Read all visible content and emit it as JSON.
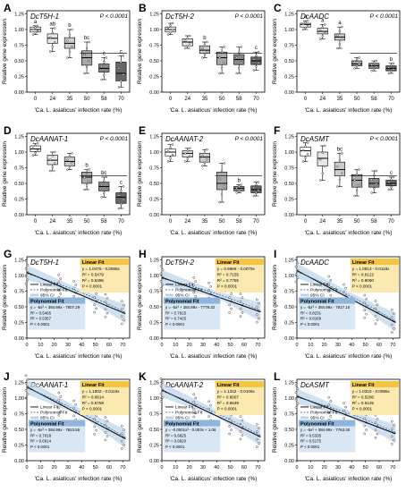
{
  "figure": {
    "shared_x_label": "'Ca. L. asiaticus' infection rate (%)",
    "shared_y_label": "Relative gene expression",
    "box_panels": [
      {
        "letter": "A",
        "gene": "DcT5H-1",
        "pval": "P < 0.0001",
        "ylim": [
          0,
          1.3
        ],
        "yticks": [
          "0.00",
          "0.25",
          "0.50",
          "0.75",
          "1.00",
          "1.25"
        ],
        "categories": [
          "0",
          "24",
          "35",
          "50",
          "58",
          "70"
        ],
        "medians": [
          1.0,
          0.86,
          0.78,
          0.55,
          0.38,
          0.3
        ],
        "q1": [
          0.96,
          0.78,
          0.7,
          0.43,
          0.32,
          0.18
        ],
        "q3": [
          1.04,
          0.93,
          0.87,
          0.66,
          0.45,
          0.48
        ],
        "whisker_low": [
          0.92,
          0.65,
          0.55,
          0.3,
          0.2,
          0.08
        ],
        "whisker_high": [
          1.06,
          1.02,
          1.0,
          0.8,
          0.55,
          0.58
        ],
        "fills": [
          "#ffffff",
          "#e6e6e6",
          "#cccccc",
          "#aaaaaa",
          "#888888",
          "#666666"
        ],
        "letters": [
          "a",
          "ab",
          "b",
          "bc",
          "c",
          "c"
        ],
        "sig_lines": [
          {
            "from": 0,
            "to": 0,
            "y": 1.06,
            "label": "a"
          }
        ]
      },
      {
        "letter": "B",
        "gene": "DcT5H-2",
        "pval": "P < 0.0001",
        "ylim": [
          0,
          1.3
        ],
        "yticks": [
          "0.00",
          "0.25",
          "0.50",
          "0.75",
          "1.00",
          "1.25"
        ],
        "categories": [
          "0",
          "24",
          "35",
          "50",
          "58",
          "70"
        ],
        "medians": [
          1.0,
          0.8,
          0.67,
          0.55,
          0.52,
          0.5
        ],
        "q1": [
          0.96,
          0.74,
          0.62,
          0.44,
          0.44,
          0.44
        ],
        "q3": [
          1.04,
          0.85,
          0.74,
          0.64,
          0.6,
          0.56
        ],
        "whisker_low": [
          0.92,
          0.7,
          0.55,
          0.3,
          0.3,
          0.35
        ],
        "whisker_high": [
          1.1,
          0.9,
          0.8,
          0.72,
          0.72,
          0.64
        ],
        "fills": [
          "#ffffff",
          "#e6e6e6",
          "#cccccc",
          "#aaaaaa",
          "#888888",
          "#666666"
        ],
        "letters": [
          "",
          "",
          "b",
          "",
          "",
          "c"
        ],
        "sig_lines": []
      },
      {
        "letter": "C",
        "gene": "DcAADC",
        "pval": "P < 0.0001",
        "ylim": [
          0,
          1.3
        ],
        "yticks": [
          "0.00",
          "0.25",
          "0.50",
          "0.75",
          "1.00",
          "1.25"
        ],
        "categories": [
          "0",
          "24",
          "35",
          "50",
          "58",
          "70"
        ],
        "medians": [
          1.08,
          0.97,
          0.88,
          0.45,
          0.42,
          0.38
        ],
        "q1": [
          1.04,
          0.93,
          0.83,
          0.42,
          0.38,
          0.34
        ],
        "q3": [
          1.1,
          1.02,
          0.93,
          0.5,
          0.46,
          0.42
        ],
        "whisker_low": [
          1.0,
          0.85,
          0.7,
          0.38,
          0.34,
          0.3
        ],
        "whisker_high": [
          1.14,
          1.08,
          1.04,
          0.55,
          0.5,
          0.46
        ],
        "fills": [
          "#ffffff",
          "#e6e6e6",
          "#cccccc",
          "#aaaaaa",
          "#888888",
          "#666666"
        ],
        "letters": [
          "a",
          "a",
          "a",
          "",
          "",
          "b"
        ],
        "sig_lines": []
      },
      {
        "letter": "D",
        "gene": "DcAANAT-1",
        "pval": "P < 0.0001",
        "ylim": [
          0,
          1.3
        ],
        "yticks": [
          "0.00",
          "0.25",
          "0.50",
          "0.75",
          "1.00",
          "1.25"
        ],
        "categories": [
          "0",
          "24",
          "35",
          "50",
          "58",
          "70"
        ],
        "medians": [
          1.05,
          0.87,
          0.85,
          0.6,
          0.45,
          0.28
        ],
        "q1": [
          1.01,
          0.8,
          0.78,
          0.5,
          0.38,
          0.18
        ],
        "q3": [
          1.1,
          0.95,
          0.92,
          0.68,
          0.52,
          0.35
        ],
        "whisker_low": [
          0.95,
          0.7,
          0.72,
          0.4,
          0.28,
          0.1
        ],
        "whisker_high": [
          1.14,
          1.0,
          0.98,
          0.72,
          0.6,
          0.45
        ],
        "fills": [
          "#ffffff",
          "#e6e6e6",
          "#cccccc",
          "#aaaaaa",
          "#888888",
          "#666666"
        ],
        "letters": [
          "",
          "",
          "",
          "b",
          "bc",
          "c"
        ],
        "sig_lines": []
      },
      {
        "letter": "E",
        "gene": "DcAANAT-2",
        "pval": "P < 0.0001",
        "ylim": [
          0,
          1.3
        ],
        "yticks": [
          "0.00",
          "0.25",
          "0.50",
          "0.75",
          "1.00",
          "1.25"
        ],
        "categories": [
          "0",
          "24",
          "35",
          "50",
          "58",
          "70"
        ],
        "medians": [
          1.0,
          0.98,
          0.92,
          0.5,
          0.42,
          0.4
        ],
        "q1": [
          0.94,
          0.92,
          0.84,
          0.4,
          0.38,
          0.35
        ],
        "q3": [
          1.05,
          1.02,
          0.98,
          0.68,
          0.45,
          0.46
        ],
        "whisker_low": [
          0.85,
          0.85,
          0.78,
          0.2,
          0.35,
          0.3
        ],
        "whisker_high": [
          1.12,
          1.06,
          1.04,
          0.82,
          0.48,
          0.52
        ],
        "fills": [
          "#ffffff",
          "#e6e6e6",
          "#cccccc",
          "#aaaaaa",
          "#888888",
          "#666666"
        ],
        "letters": [
          "",
          "",
          "",
          "",
          "b",
          ""
        ],
        "sig_lines": []
      },
      {
        "letter": "F",
        "gene": "DcASMT",
        "pval": "P < 0.0001",
        "ylim": [
          0,
          1.3
        ],
        "yticks": [
          "0.00",
          "0.25",
          "0.50",
          "0.75",
          "1.00",
          "1.25"
        ],
        "categories": [
          "0",
          "24",
          "35",
          "50",
          "58",
          "70"
        ],
        "medians": [
          1.02,
          0.9,
          0.72,
          0.55,
          0.5,
          0.5
        ],
        "q1": [
          0.94,
          0.78,
          0.62,
          0.44,
          0.44,
          0.46
        ],
        "q3": [
          1.08,
          1.0,
          0.84,
          0.64,
          0.58,
          0.55
        ],
        "whisker_low": [
          0.85,
          0.55,
          0.45,
          0.3,
          0.35,
          0.4
        ],
        "whisker_high": [
          1.15,
          1.1,
          0.98,
          0.72,
          0.7,
          0.6
        ],
        "fills": [
          "#ffffff",
          "#e6e6e6",
          "#cccccc",
          "#aaaaaa",
          "#888888",
          "#666666"
        ],
        "letters": [
          "",
          "",
          "bc",
          "",
          "",
          "c"
        ],
        "sig_lines": []
      }
    ],
    "fit_panels": [
      {
        "letter": "G",
        "gene": "DcT5H-1",
        "linear_title": "Linear Fit",
        "linear_lines": [
          "y = 1.0475 - 0.0095x",
          "R² = 0.5479",
          "R² = 0.5396",
          "P < 0.0001"
        ],
        "poly_title": "Polynomial Fit",
        "poly_lines": [
          "y = -5x³ + 384.99x - 7807.29",
          "R² = 0.5465",
          "R² = 0.5357",
          "P < 0.0001"
        ],
        "legend": [
          "Linear Fit",
          "Polynomial Fit",
          "95% CI"
        ],
        "x_ticks": [
          "0",
          "10",
          "20",
          "30",
          "40",
          "50",
          "60",
          "70"
        ],
        "y_ticks": [
          "0.00",
          "0.25",
          "0.50",
          "0.75",
          "1.00",
          "1.25"
        ],
        "line": [
          1.05,
          0.39
        ]
      },
      {
        "letter": "H",
        "gene": "DcT5H-2",
        "linear_title": "Linear Fit",
        "linear_lines": [
          "y = 0.9668 - 0.0079x",
          "R² = 0.7155",
          "R² = 0.7755",
          "P < 0.0001"
        ],
        "poly_title": "Polynomial Fit",
        "poly_lines": [
          "y = -5x³ + 384.99x - 7779.32",
          "R² = 0.7915",
          "R² = 0.7425",
          "P < 0.0001"
        ],
        "legend": [
          "Linear Fit",
          "Polynomial Fit",
          "95% CI"
        ],
        "x_ticks": [
          "0",
          "10",
          "20",
          "30",
          "40",
          "50",
          "60",
          "70"
        ],
        "y_ticks": [
          "0.00",
          "0.25",
          "0.50",
          "0.75",
          "1.00",
          "1.25"
        ],
        "line": [
          0.97,
          0.42
        ]
      },
      {
        "letter": "I",
        "gene": "DcAADC",
        "linear_title": "Linear Fit",
        "linear_lines": [
          "y = 1.0813 - 0.0118x",
          "R² = 0.8122",
          "R² = 0.8090",
          "P < 0.0001"
        ],
        "poly_title": "Polynomial Fit",
        "poly_lines": [
          "y = -5x³ + 384.99x - 7817.16",
          "R² = 0.8231",
          "R² = 0.8169",
          "P < 0.0001"
        ],
        "legend": [
          "Linear Fit",
          "Polynomial Fit",
          "95% CI"
        ],
        "x_ticks": [
          "0",
          "10",
          "20",
          "30",
          "40",
          "50",
          "60",
          "70"
        ],
        "y_ticks": [
          "0.00",
          "0.25",
          "0.50",
          "0.75",
          "1.00",
          "1.25"
        ],
        "line": [
          1.08,
          0.25
        ]
      },
      {
        "letter": "J",
        "gene": "DcAANAT-1",
        "linear_title": "Linear Fit",
        "linear_lines": [
          "y = 1.1802 - 0.0119x",
          "R² = 0.6814",
          "R² = 0.6759",
          "P < 0.0001"
        ],
        "poly_title": "Polynomial Fit",
        "poly_lines": [
          "y = -5x³ + 384.99x - 7823.55",
          "R² = 0.7018",
          "R² = 0.6914",
          "P < 0.0001"
        ],
        "legend": [
          "Linear Fit",
          "Polynomial Fit",
          "95% CI"
        ],
        "x_ticks": [
          "0",
          "10",
          "20",
          "30",
          "40",
          "50",
          "60",
          "70"
        ],
        "y_ticks": [
          "0.00",
          "0.25",
          "0.50",
          "0.75",
          "1.00",
          "1.25"
        ],
        "line": [
          1.18,
          0.35
        ]
      },
      {
        "letter": "K",
        "gene": "DcAANAT-2",
        "linear_title": "Linear Fit",
        "linear_lines": [
          "y = 1.1342 - 0.0108x",
          "R² = 0.6607",
          "R² = 0.6549",
          "P < 0.0001"
        ],
        "poly_title": "Polynomial Fit",
        "poly_lines": [
          "y = -0.0001x³ - 0.003x + 1.06",
          "R² = 0.6925",
          "R² = 0.6820",
          "P < 0.0001"
        ],
        "legend": [
          "Linear Fit",
          "Polynomial Fit",
          "95% CI"
        ],
        "x_ticks": [
          "0",
          "10",
          "20",
          "30",
          "40",
          "50",
          "60",
          "70"
        ],
        "y_ticks": [
          "0.00",
          "0.25",
          "0.50",
          "0.75",
          "1.00",
          "1.25"
        ],
        "line": [
          1.13,
          0.38
        ]
      },
      {
        "letter": "L",
        "gene": "DcASMT",
        "linear_title": "Linear Fit",
        "linear_lines": [
          "y = 1.0310 - 0.0085x",
          "R² = 0.5206",
          "R² = 0.5125",
          "P < 0.0001"
        ],
        "poly_title": "Polynomial Fit",
        "poly_lines": [
          "y = -5x³ + 384.99x - 7763.30",
          "R² = 0.5335",
          "R² = 0.5175",
          "P < 0.0001"
        ],
        "legend": [
          "Linear Fit",
          "Polynomial Fit",
          "95% CI"
        ],
        "x_ticks": [
          "0",
          "10",
          "20",
          "30",
          "40",
          "50",
          "60",
          "70"
        ],
        "y_ticks": [
          "0.00",
          "0.25",
          "0.50",
          "0.75",
          "1.00",
          "1.25"
        ],
        "line": [
          1.03,
          0.43
        ]
      }
    ]
  },
  "chart_data": [
    {
      "type": "box",
      "panel": "A",
      "categories": [
        "0",
        "24",
        "35",
        "50",
        "58",
        "70"
      ],
      "values": [
        1.0,
        0.86,
        0.78,
        0.55,
        0.38,
        0.3
      ],
      "ylabel": "Relative gene expression",
      "xlabel": "'Ca. L. asiaticus' infection rate (%)",
      "ylim": [
        0,
        1.3
      ]
    },
    {
      "type": "box",
      "panel": "B",
      "categories": [
        "0",
        "24",
        "35",
        "50",
        "58",
        "70"
      ],
      "values": [
        1.0,
        0.8,
        0.67,
        0.55,
        0.52,
        0.5
      ],
      "ylim": [
        0,
        1.3
      ]
    },
    {
      "type": "box",
      "panel": "C",
      "categories": [
        "0",
        "24",
        "35",
        "50",
        "58",
        "70"
      ],
      "values": [
        1.08,
        0.97,
        0.88,
        0.45,
        0.42,
        0.38
      ],
      "ylim": [
        0,
        1.3
      ]
    },
    {
      "type": "box",
      "panel": "D",
      "categories": [
        "0",
        "24",
        "35",
        "50",
        "58",
        "70"
      ],
      "values": [
        1.05,
        0.87,
        0.85,
        0.6,
        0.45,
        0.28
      ],
      "ylim": [
        0,
        1.3
      ]
    },
    {
      "type": "box",
      "panel": "E",
      "categories": [
        "0",
        "24",
        "35",
        "50",
        "58",
        "70"
      ],
      "values": [
        1.0,
        0.98,
        0.92,
        0.5,
        0.42,
        0.4
      ],
      "ylim": [
        0,
        1.3
      ]
    },
    {
      "type": "box",
      "panel": "F",
      "categories": [
        "0",
        "24",
        "35",
        "50",
        "58",
        "70"
      ],
      "values": [
        1.02,
        0.9,
        0.72,
        0.55,
        0.5,
        0.5
      ],
      "ylim": [
        0,
        1.3
      ]
    },
    {
      "type": "scatter",
      "panel": "G",
      "fit": "linear",
      "intercept": 1.0475,
      "slope": -0.0095,
      "xlim": [
        0,
        75
      ],
      "ylim": [
        0,
        1.3
      ]
    },
    {
      "type": "scatter",
      "panel": "H",
      "fit": "linear",
      "intercept": 0.9668,
      "slope": -0.0079,
      "xlim": [
        0,
        75
      ],
      "ylim": [
        0,
        1.3
      ]
    },
    {
      "type": "scatter",
      "panel": "I",
      "fit": "linear",
      "intercept": 1.0813,
      "slope": -0.0118,
      "xlim": [
        0,
        75
      ],
      "ylim": [
        0,
        1.3
      ]
    },
    {
      "type": "scatter",
      "panel": "J",
      "fit": "linear",
      "intercept": 1.1802,
      "slope": -0.0119,
      "xlim": [
        0,
        75
      ],
      "ylim": [
        0,
        1.3
      ]
    },
    {
      "type": "scatter",
      "panel": "K",
      "fit": "linear",
      "intercept": 1.1342,
      "slope": -0.0108,
      "xlim": [
        0,
        75
      ],
      "ylim": [
        0,
        1.3
      ]
    },
    {
      "type": "scatter",
      "panel": "L",
      "fit": "linear",
      "intercept": 1.031,
      "slope": -0.0085,
      "xlim": [
        0,
        75
      ],
      "ylim": [
        0,
        1.3
      ]
    }
  ]
}
